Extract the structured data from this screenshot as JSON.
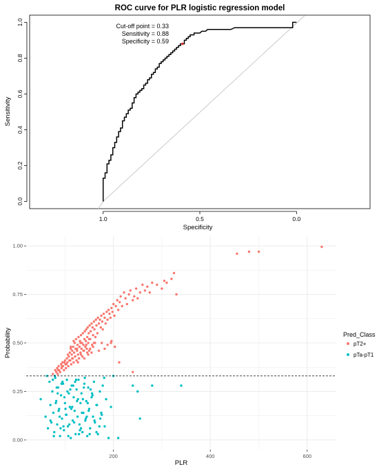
{
  "chart_data": [
    {
      "type": "line",
      "title": "ROC curve for PLR logistic regression model",
      "xlabel": "Specificity",
      "ylabel": "Sensitivity",
      "xlim": [
        1.38,
        -0.38
      ],
      "ylim": [
        -0.04,
        1.04
      ],
      "x_reversed": true,
      "x_ticks": [
        1.0,
        0.5,
        0.0
      ],
      "x_tick_labels": [
        "1.0",
        "0.5",
        "0.0"
      ],
      "y_ticks": [
        0.0,
        0.2,
        0.4,
        0.6,
        0.8,
        1.0
      ],
      "y_tick_labels": [
        "0.0",
        "0.2",
        "0.4",
        "0.6",
        "0.8",
        "1.0"
      ],
      "grid": false,
      "curve": {
        "specificity": [
          1.0,
          1.0,
          0.99,
          0.99,
          0.98,
          0.98,
          0.97,
          0.97,
          0.96,
          0.96,
          0.95,
          0.95,
          0.94,
          0.94,
          0.93,
          0.93,
          0.92,
          0.92,
          0.91,
          0.91,
          0.9,
          0.9,
          0.89,
          0.89,
          0.88,
          0.88,
          0.87,
          0.87,
          0.86,
          0.86,
          0.85,
          0.85,
          0.84,
          0.84,
          0.83,
          0.83,
          0.82,
          0.82,
          0.81,
          0.81,
          0.8,
          0.8,
          0.79,
          0.79,
          0.78,
          0.78,
          0.77,
          0.77,
          0.76,
          0.76,
          0.75,
          0.75,
          0.74,
          0.74,
          0.73,
          0.73,
          0.72,
          0.72,
          0.71,
          0.71,
          0.7,
          0.7,
          0.69,
          0.69,
          0.68,
          0.68,
          0.67,
          0.67,
          0.66,
          0.66,
          0.65,
          0.65,
          0.64,
          0.64,
          0.63,
          0.63,
          0.62,
          0.62,
          0.61,
          0.61,
          0.6,
          0.6,
          0.59,
          0.58,
          0.58,
          0.57,
          0.57,
          0.56,
          0.56,
          0.55,
          0.55,
          0.54,
          0.53,
          0.53,
          0.52,
          0.51,
          0.5,
          0.49,
          0.48,
          0.47,
          0.46,
          0.44,
          0.42,
          0.4,
          0.38,
          0.36,
          0.34,
          0.32,
          0.3,
          0.28,
          0.22,
          0.16,
          0.1,
          0.04,
          0.02,
          0.02,
          0.0
        ],
        "sensitivity": [
          0.0,
          0.13,
          0.13,
          0.16,
          0.16,
          0.21,
          0.21,
          0.23,
          0.23,
          0.26,
          0.26,
          0.3,
          0.3,
          0.33,
          0.33,
          0.36,
          0.36,
          0.39,
          0.39,
          0.41,
          0.41,
          0.45,
          0.45,
          0.47,
          0.47,
          0.49,
          0.49,
          0.51,
          0.51,
          0.52,
          0.52,
          0.55,
          0.55,
          0.58,
          0.58,
          0.6,
          0.6,
          0.61,
          0.61,
          0.62,
          0.62,
          0.63,
          0.63,
          0.65,
          0.65,
          0.66,
          0.66,
          0.68,
          0.68,
          0.69,
          0.69,
          0.71,
          0.71,
          0.72,
          0.72,
          0.74,
          0.74,
          0.75,
          0.75,
          0.77,
          0.77,
          0.78,
          0.78,
          0.79,
          0.79,
          0.8,
          0.8,
          0.81,
          0.81,
          0.82,
          0.82,
          0.83,
          0.83,
          0.84,
          0.84,
          0.85,
          0.85,
          0.86,
          0.86,
          0.87,
          0.87,
          0.88,
          0.88,
          0.88,
          0.9,
          0.9,
          0.91,
          0.91,
          0.92,
          0.92,
          0.93,
          0.93,
          0.93,
          0.94,
          0.94,
          0.94,
          0.94,
          0.95,
          0.95,
          0.95,
          0.96,
          0.96,
          0.96,
          0.96,
          0.96,
          0.96,
          0.96,
          0.97,
          0.97,
          0.97,
          0.97,
          0.97,
          0.97,
          0.97,
          0.97,
          1.0,
          1.0
        ]
      },
      "reference_line": {
        "from": [
          1.0,
          0.0
        ],
        "to": [
          0.0,
          1.0
        ],
        "color": "#bdbdbd"
      },
      "cutoff_point": {
        "specificity": 0.59,
        "sensitivity": 0.88,
        "color": "#d73027"
      },
      "annotation_lines": [
        "Cut-off point = 0.33",
        "Sensitivity = 0.88",
        "Specificity = 0.59"
      ]
    },
    {
      "type": "scatter",
      "xlabel": "PLR",
      "ylabel": "Probability",
      "xlim": [
        20,
        660
      ],
      "ylim": [
        -0.05,
        1.05
      ],
      "x_ticks": [
        200,
        400,
        600
      ],
      "x_tick_labels": [
        "200",
        "400",
        "600"
      ],
      "y_ticks": [
        0.0,
        0.25,
        0.5,
        0.75,
        1.0
      ],
      "y_tick_labels": [
        "0.00",
        "0.25",
        "0.50",
        "0.75",
        "1.00"
      ],
      "grid": true,
      "panel_background": "#ffffff",
      "grid_color": "#ebebeb",
      "threshold": 0.33,
      "legend": {
        "title": "Pred_Class",
        "position": "right",
        "entries": [
          {
            "label": "pT2+",
            "color": "#f8766d"
          },
          {
            "label": "pTa-pT1",
            "color": "#00bfc4"
          }
        ]
      },
      "series": [
        {
          "name": "pT2+",
          "color": "#f8766d",
          "x": [
            75,
            80,
            82,
            84,
            85,
            87,
            88,
            90,
            92,
            93,
            95,
            96,
            98,
            100,
            101,
            102,
            104,
            105,
            106,
            107,
            108,
            110,
            111,
            112,
            113,
            114,
            115,
            116,
            117,
            118,
            119,
            120,
            121,
            122,
            123,
            124,
            125,
            126,
            127,
            128,
            129,
            130,
            131,
            132,
            133,
            134,
            135,
            136,
            137,
            138,
            139,
            140,
            141,
            142,
            143,
            144,
            145,
            146,
            147,
            148,
            149,
            150,
            151,
            152,
            153,
            155,
            156,
            157,
            158,
            160,
            161,
            162,
            164,
            165,
            167,
            168,
            170,
            172,
            174,
            175,
            177,
            178,
            180,
            182,
            184,
            186,
            188,
            190,
            192,
            194,
            196,
            198,
            200,
            202,
            205,
            208,
            210,
            213,
            215,
            218,
            222,
            225,
            228,
            232,
            235,
            240,
            243,
            247,
            250,
            255,
            260,
            265,
            270,
            275,
            280,
            290,
            300,
            305,
            310,
            320,
            325,
            330,
            195,
            212,
            240,
            455,
            480,
            500,
            630,
            112,
            118,
            125,
            132,
            138,
            144,
            150,
            158,
            163,
            170,
            176,
            182,
            188,
            196,
            203,
            140,
            148,
            155,
            86,
            94,
            99,
            103,
            109,
            115,
            121,
            127,
            133,
            139,
            146,
            152,
            160
          ],
          "y": [
            0.34,
            0.36,
            0.35,
            0.37,
            0.34,
            0.38,
            0.36,
            0.35,
            0.39,
            0.37,
            0.4,
            0.38,
            0.36,
            0.41,
            0.39,
            0.37,
            0.42,
            0.4,
            0.44,
            0.38,
            0.43,
            0.45,
            0.41,
            0.47,
            0.39,
            0.44,
            0.46,
            0.42,
            0.48,
            0.4,
            0.45,
            0.5,
            0.43,
            0.47,
            0.52,
            0.41,
            0.46,
            0.49,
            0.44,
            0.53,
            0.42,
            0.48,
            0.51,
            0.45,
            0.54,
            0.47,
            0.5,
            0.43,
            0.55,
            0.49,
            0.46,
            0.52,
            0.56,
            0.48,
            0.51,
            0.57,
            0.47,
            0.53,
            0.58,
            0.5,
            0.55,
            0.46,
            0.59,
            0.52,
            0.56,
            0.6,
            0.49,
            0.58,
            0.54,
            0.61,
            0.57,
            0.5,
            0.62,
            0.59,
            0.55,
            0.63,
            0.6,
            0.62,
            0.58,
            0.64,
            0.61,
            0.57,
            0.65,
            0.63,
            0.6,
            0.66,
            0.62,
            0.67,
            0.65,
            0.63,
            0.68,
            0.66,
            0.7,
            0.64,
            0.69,
            0.72,
            0.67,
            0.71,
            0.74,
            0.69,
            0.76,
            0.73,
            0.7,
            0.75,
            0.77,
            0.72,
            0.74,
            0.78,
            0.73,
            0.76,
            0.8,
            0.77,
            0.79,
            0.76,
            0.81,
            0.8,
            0.78,
            0.82,
            0.81,
            0.83,
            0.86,
            0.75,
            0.5,
            0.4,
            0.35,
            0.96,
            0.97,
            0.97,
            0.995,
            0.48,
            0.51,
            0.47,
            0.5,
            0.46,
            0.49,
            0.52,
            0.48,
            0.53,
            0.46,
            0.5,
            0.47,
            0.49,
            0.51,
            0.48,
            0.42,
            0.44,
            0.45,
            0.36,
            0.38,
            0.4,
            0.39,
            0.41,
            0.42,
            0.43,
            0.4,
            0.44,
            0.46,
            0.45,
            0.47,
            0.5
          ]
        },
        {
          "name": "pTa-pT1",
          "color": "#00bfc4",
          "x": [
            50,
            60,
            65,
            68,
            70,
            72,
            74,
            76,
            78,
            80,
            82,
            84,
            86,
            88,
            90,
            92,
            94,
            96,
            98,
            100,
            102,
            104,
            106,
            108,
            110,
            112,
            114,
            116,
            118,
            120,
            122,
            124,
            126,
            128,
            130,
            132,
            134,
            136,
            138,
            140,
            142,
            144,
            146,
            148,
            150,
            152,
            155,
            158,
            160,
            162,
            165,
            168,
            172,
            175,
            178,
            182,
            185,
            190,
            195,
            200,
            210,
            240,
            250,
            255,
            280,
            340,
            79,
            83,
            87,
            91,
            95,
            99,
            103,
            107,
            111,
            115,
            119,
            123,
            127,
            131,
            135,
            139,
            143,
            147,
            151,
            156,
            161,
            166,
            171,
            176,
            70,
            77,
            85,
            93,
            101,
            109,
            117,
            125,
            133,
            141,
            149,
            157,
            165,
            173,
            181,
            97,
            105,
            113,
            121,
            129,
            137,
            145,
            153,
            89,
            81,
            75,
            63
          ],
          "y": [
            0.21,
            0.12,
            0.06,
            0.3,
            0.18,
            0.09,
            0.25,
            0.14,
            0.04,
            0.32,
            0.2,
            0.08,
            0.27,
            0.16,
            0.02,
            0.23,
            0.11,
            0.29,
            0.05,
            0.19,
            0.13,
            0.31,
            0.07,
            0.24,
            0.17,
            0.01,
            0.28,
            0.1,
            0.22,
            0.15,
            0.03,
            0.26,
            0.12,
            0.31,
            0.08,
            0.19,
            0.24,
            0.04,
            0.14,
            0.29,
            0.1,
            0.2,
            0.02,
            0.27,
            0.16,
            0.06,
            0.22,
            0.12,
            0.3,
            0.09,
            0.18,
            0.03,
            0.25,
            0.14,
            0.28,
            0.07,
            0.21,
            0.01,
            0.17,
            0.33,
            0.01,
            0.28,
            0.25,
            0.11,
            0.28,
            0.28,
            0.33,
            0.27,
            0.15,
            0.06,
            0.3,
            0.22,
            0.13,
            0.02,
            0.26,
            0.17,
            0.09,
            0.31,
            0.21,
            0.05,
            0.14,
            0.27,
            0.11,
            0.19,
            0.03,
            0.24,
            0.1,
            0.18,
            0.07,
            0.13,
            0.1,
            0.02,
            0.24,
            0.29,
            0.16,
            0.08,
            0.28,
            0.2,
            0.06,
            0.32,
            0.15,
            0.23,
            0.04,
            0.11,
            0.32,
            0.07,
            0.25,
            0.16,
            0.3,
            0.03,
            0.21,
            0.12,
            0.26,
            0.12,
            0.19,
            0.31,
            0.33
          ]
        }
      ]
    }
  ]
}
